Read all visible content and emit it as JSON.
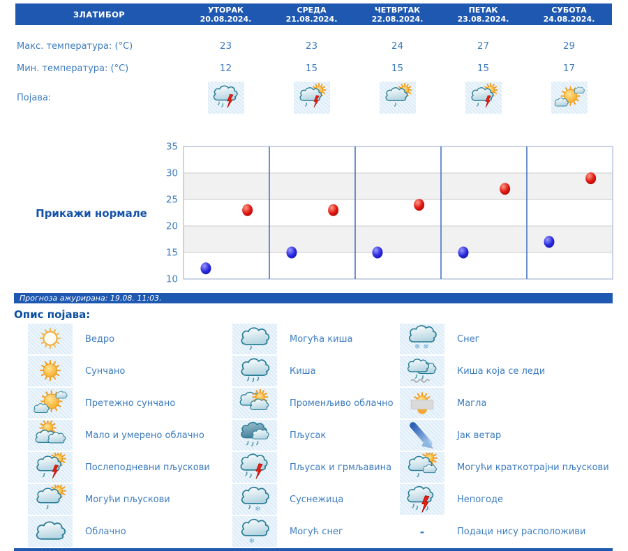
{
  "colors": {
    "primary_blue": "#1e58b0",
    "text_blue": "#3d7cc0",
    "heading_blue": "#0d4fa0",
    "max_marker_red": "#cc1111",
    "min_marker_blue": "#1515b5",
    "icon_tile_bg": "#dcecf8"
  },
  "header": {
    "station": "ЗЛАТИБОР",
    "days": [
      {
        "name": "УТОРАК",
        "date": "20.08.2024."
      },
      {
        "name": "СРЕДА",
        "date": "21.08.2024."
      },
      {
        "name": "ЧЕТВРТАК",
        "date": "22.08.2024."
      },
      {
        "name": "ПЕТАК",
        "date": "23.08.2024."
      },
      {
        "name": "СУБОТА",
        "date": "24.08.2024."
      }
    ]
  },
  "rows": {
    "max_label": "Макс. температура: (°C)",
    "max_values": [
      "23",
      "23",
      "24",
      "27",
      "29"
    ],
    "min_label": "Мин. температура: (°C)",
    "min_values": [
      "12",
      "15",
      "15",
      "15",
      "17"
    ],
    "phenomena_label": "Појава:",
    "phenomena_icons": [
      "shower-thunder",
      "afternoon-showers",
      "possible-showers-sun",
      "afternoon-showers",
      "mostly-sunny"
    ]
  },
  "normals_link": "Прикажи нормале",
  "chart_data": {
    "type": "scatter",
    "categories": [
      "20.08.2024.",
      "21.08.2024.",
      "22.08.2024.",
      "23.08.2024.",
      "24.08.2024."
    ],
    "series": [
      {
        "name": "Макс. температура (°C)",
        "color": "#cc1111",
        "values": [
          23,
          23,
          24,
          27,
          29
        ]
      },
      {
        "name": "Мин. температура (°C)",
        "color": "#1515b5",
        "values": [
          12,
          15,
          15,
          15,
          17
        ]
      }
    ],
    "ylim": [
      10,
      35
    ],
    "yticks": [
      10,
      15,
      20,
      25,
      30,
      35
    ],
    "shaded_bands": [
      [
        15,
        20
      ],
      [
        25,
        30
      ]
    ],
    "grid": true,
    "title": "",
    "xlabel": "",
    "ylabel": ""
  },
  "status": "Прогноза ажурирана:  19.08. 11:03.",
  "legend": {
    "title": "Опис појава:",
    "columns": [
      [
        {
          "icon": "clear",
          "label": "Ведро"
        },
        {
          "icon": "sunny",
          "label": "Сунчано"
        },
        {
          "icon": "mostly-sunny",
          "label": "Претежно сунчано"
        },
        {
          "icon": "partly-cloudy",
          "label": "Мало и умерено облачно"
        },
        {
          "icon": "afternoon-showers",
          "label": "Послеподневни пљускови"
        },
        {
          "icon": "possible-showers-sun",
          "label": "Могући пљускови"
        },
        {
          "icon": "cloudy",
          "label": "Облачно"
        }
      ],
      [
        {
          "icon": "possible-rain",
          "label": "Могућа киша"
        },
        {
          "icon": "rain",
          "label": "Киша"
        },
        {
          "icon": "variable-clouds",
          "label": "Променљиво облачно"
        },
        {
          "icon": "heavy-shower",
          "label": "Пљусак"
        },
        {
          "icon": "shower-thunder",
          "label": "Пљусак и грмљавина"
        },
        {
          "icon": "sleet",
          "label": "Суснежица"
        },
        {
          "icon": "possible-snow",
          "label": "Могућ снег"
        }
      ],
      [
        {
          "icon": "snow",
          "label": "Снег"
        },
        {
          "icon": "freezing-rain",
          "label": "Киша која се леди"
        },
        {
          "icon": "fog",
          "label": "Магла"
        },
        {
          "icon": "strong-wind",
          "label": "Јак ветар"
        },
        {
          "icon": "brief-showers-sun",
          "label": "Могући краткотрајни пљускови"
        },
        {
          "icon": "storms",
          "label": "Непогоде"
        },
        {
          "icon": "none",
          "label": "Подаци нису расположиви"
        }
      ]
    ]
  }
}
